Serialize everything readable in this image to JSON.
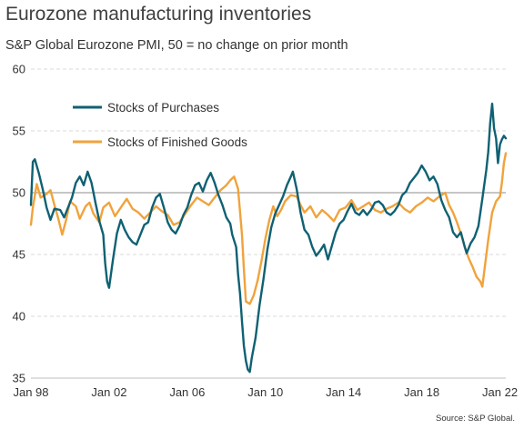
{
  "title": "Eurozone manufacturing inventories",
  "subtitle": "S&P Global Eurozone PMI, 50 = no change on prior month",
  "source": "Source: S&P Global.",
  "chart_data": {
    "type": "line",
    "ylim": [
      35,
      60
    ],
    "yticks": [
      "35",
      "40",
      "45",
      "50",
      "55",
      "60"
    ],
    "xlim": [
      1998.0,
      2022.3
    ],
    "xticks": [
      {
        "label": "Jan 98",
        "value": 1998
      },
      {
        "label": "Jan 02",
        "value": 2002
      },
      {
        "label": "Jan 06",
        "value": 2006
      },
      {
        "label": "Jan 10",
        "value": 2010
      },
      {
        "label": "Jan 14",
        "value": 2014
      },
      {
        "label": "Jan 18",
        "value": 2018
      },
      {
        "label": "Jan 22",
        "value": 2022
      }
    ],
    "grid": "horizontal-dashed",
    "reference_line": 50,
    "legend_position": "top-left",
    "series": [
      {
        "name": "Stocks of Purchases",
        "color": "#0f6173",
        "points": [
          [
            1998.0,
            49.0
          ],
          [
            1998.1,
            52.5
          ],
          [
            1998.2,
            52.7
          ],
          [
            1998.4,
            51.6
          ],
          [
            1998.6,
            50.3
          ],
          [
            1998.8,
            48.8
          ],
          [
            1999.0,
            47.8
          ],
          [
            1999.2,
            48.7
          ],
          [
            1999.5,
            48.6
          ],
          [
            1999.7,
            48.0
          ],
          [
            1999.9,
            48.8
          ],
          [
            2000.1,
            49.6
          ],
          [
            2000.3,
            50.8
          ],
          [
            2000.5,
            51.3
          ],
          [
            2000.7,
            50.6
          ],
          [
            2000.9,
            51.7
          ],
          [
            2001.1,
            50.8
          ],
          [
            2001.3,
            49.2
          ],
          [
            2001.5,
            47.7
          ],
          [
            2001.7,
            46.6
          ],
          [
            2001.8,
            44.3
          ],
          [
            2001.9,
            42.8
          ],
          [
            2002.0,
            42.3
          ],
          [
            2002.2,
            44.6
          ],
          [
            2002.4,
            46.7
          ],
          [
            2002.6,
            47.8
          ],
          [
            2002.8,
            47.0
          ],
          [
            2003.0,
            46.4
          ],
          [
            2003.2,
            46.0
          ],
          [
            2003.4,
            45.8
          ],
          [
            2003.6,
            46.6
          ],
          [
            2003.8,
            47.4
          ],
          [
            2004.0,
            47.6
          ],
          [
            2004.2,
            48.8
          ],
          [
            2004.4,
            49.6
          ],
          [
            2004.6,
            49.9
          ],
          [
            2004.8,
            48.8
          ],
          [
            2005.0,
            47.6
          ],
          [
            2005.2,
            47.0
          ],
          [
            2005.4,
            46.7
          ],
          [
            2005.6,
            47.3
          ],
          [
            2005.8,
            48.2
          ],
          [
            2006.0,
            48.8
          ],
          [
            2006.2,
            49.8
          ],
          [
            2006.4,
            50.6
          ],
          [
            2006.6,
            50.8
          ],
          [
            2006.8,
            50.1
          ],
          [
            2007.0,
            51.0
          ],
          [
            2007.2,
            51.6
          ],
          [
            2007.4,
            50.8
          ],
          [
            2007.6,
            49.8
          ],
          [
            2007.8,
            49.0
          ],
          [
            2008.0,
            48.0
          ],
          [
            2008.2,
            47.5
          ],
          [
            2008.3,
            46.6
          ],
          [
            2008.5,
            45.6
          ],
          [
            2008.6,
            43.4
          ],
          [
            2008.7,
            41.8
          ],
          [
            2008.8,
            39.6
          ],
          [
            2008.9,
            37.6
          ],
          [
            2009.0,
            36.4
          ],
          [
            2009.1,
            35.7
          ],
          [
            2009.2,
            35.5
          ],
          [
            2009.3,
            36.6
          ],
          [
            2009.5,
            38.3
          ],
          [
            2009.7,
            40.9
          ],
          [
            2009.9,
            43.0
          ],
          [
            2010.1,
            45.4
          ],
          [
            2010.3,
            47.2
          ],
          [
            2010.5,
            48.3
          ],
          [
            2010.7,
            49.0
          ],
          [
            2010.9,
            49.7
          ],
          [
            2011.1,
            50.6
          ],
          [
            2011.3,
            51.3
          ],
          [
            2011.4,
            51.7
          ],
          [
            2011.6,
            50.3
          ],
          [
            2011.8,
            48.4
          ],
          [
            2012.0,
            47.0
          ],
          [
            2012.2,
            46.6
          ],
          [
            2012.4,
            45.6
          ],
          [
            2012.6,
            44.9
          ],
          [
            2012.8,
            45.3
          ],
          [
            2013.0,
            45.8
          ],
          [
            2013.2,
            44.6
          ],
          [
            2013.4,
            45.7
          ],
          [
            2013.6,
            46.8
          ],
          [
            2013.8,
            47.5
          ],
          [
            2014.0,
            47.8
          ],
          [
            2014.2,
            48.5
          ],
          [
            2014.4,
            49.1
          ],
          [
            2014.6,
            48.4
          ],
          [
            2014.8,
            48.2
          ],
          [
            2015.0,
            48.6
          ],
          [
            2015.2,
            48.2
          ],
          [
            2015.4,
            48.6
          ],
          [
            2015.6,
            49.2
          ],
          [
            2015.8,
            49.3
          ],
          [
            2016.0,
            49.0
          ],
          [
            2016.2,
            48.4
          ],
          [
            2016.4,
            48.2
          ],
          [
            2016.6,
            48.5
          ],
          [
            2016.8,
            49.0
          ],
          [
            2017.0,
            49.8
          ],
          [
            2017.2,
            50.1
          ],
          [
            2017.4,
            50.8
          ],
          [
            2017.6,
            51.2
          ],
          [
            2017.8,
            51.6
          ],
          [
            2018.0,
            52.2
          ],
          [
            2018.2,
            51.7
          ],
          [
            2018.4,
            51.0
          ],
          [
            2018.6,
            51.3
          ],
          [
            2018.8,
            50.7
          ],
          [
            2019.0,
            49.4
          ],
          [
            2019.2,
            48.6
          ],
          [
            2019.4,
            48.0
          ],
          [
            2019.6,
            46.8
          ],
          [
            2019.8,
            46.4
          ],
          [
            2020.0,
            46.8
          ],
          [
            2020.2,
            45.6
          ],
          [
            2020.3,
            45.1
          ],
          [
            2020.5,
            45.9
          ],
          [
            2020.7,
            46.4
          ],
          [
            2020.9,
            47.3
          ],
          [
            2021.1,
            49.5
          ],
          [
            2021.3,
            51.8
          ],
          [
            2021.4,
            53.3
          ],
          [
            2021.5,
            55.6
          ],
          [
            2021.6,
            57.2
          ],
          [
            2021.7,
            55.2
          ],
          [
            2021.8,
            54.4
          ],
          [
            2021.9,
            52.4
          ],
          [
            2022.0,
            53.9
          ],
          [
            2022.1,
            54.3
          ],
          [
            2022.2,
            54.6
          ],
          [
            2022.3,
            54.4
          ]
        ]
      },
      {
        "name": "Stocks of Finished Goods",
        "color": "#f0a33c",
        "points": [
          [
            1998.0,
            47.4
          ],
          [
            1998.1,
            48.8
          ],
          [
            1998.3,
            50.7
          ],
          [
            1998.5,
            49.6
          ],
          [
            1998.8,
            49.9
          ],
          [
            1999.0,
            50.2
          ],
          [
            1999.2,
            49.0
          ],
          [
            1999.4,
            47.9
          ],
          [
            1999.6,
            46.6
          ],
          [
            1999.8,
            47.8
          ],
          [
            2000.0,
            49.3
          ],
          [
            2000.3,
            48.9
          ],
          [
            2000.5,
            47.9
          ],
          [
            2000.8,
            48.9
          ],
          [
            2001.0,
            49.2
          ],
          [
            2001.2,
            48.3
          ],
          [
            2001.5,
            47.6
          ],
          [
            2001.7,
            48.8
          ],
          [
            2002.0,
            49.2
          ],
          [
            2002.3,
            48.1
          ],
          [
            2002.6,
            48.8
          ],
          [
            2002.9,
            49.5
          ],
          [
            2003.2,
            48.7
          ],
          [
            2003.5,
            48.4
          ],
          [
            2003.8,
            47.9
          ],
          [
            2004.1,
            48.4
          ],
          [
            2004.4,
            48.9
          ],
          [
            2004.7,
            48.5
          ],
          [
            2005.0,
            48.2
          ],
          [
            2005.3,
            47.4
          ],
          [
            2005.6,
            47.6
          ],
          [
            2005.9,
            48.3
          ],
          [
            2006.2,
            49.0
          ],
          [
            2006.5,
            49.6
          ],
          [
            2006.8,
            49.3
          ],
          [
            2007.1,
            49.0
          ],
          [
            2007.4,
            49.6
          ],
          [
            2007.7,
            50.2
          ],
          [
            2008.0,
            50.6
          ],
          [
            2008.2,
            51.0
          ],
          [
            2008.4,
            51.3
          ],
          [
            2008.6,
            50.3
          ],
          [
            2008.8,
            46.6
          ],
          [
            2008.9,
            43.8
          ],
          [
            2009.0,
            41.2
          ],
          [
            2009.2,
            41.0
          ],
          [
            2009.4,
            41.7
          ],
          [
            2009.6,
            42.9
          ],
          [
            2009.8,
            44.5
          ],
          [
            2010.0,
            46.3
          ],
          [
            2010.2,
            47.8
          ],
          [
            2010.4,
            48.9
          ],
          [
            2010.6,
            48.1
          ],
          [
            2010.8,
            48.6
          ],
          [
            2011.0,
            49.3
          ],
          [
            2011.3,
            49.8
          ],
          [
            2011.6,
            49.7
          ],
          [
            2011.8,
            49.0
          ],
          [
            2012.0,
            48.4
          ],
          [
            2012.3,
            48.9
          ],
          [
            2012.6,
            48.0
          ],
          [
            2012.9,
            48.6
          ],
          [
            2013.2,
            48.2
          ],
          [
            2013.5,
            47.7
          ],
          [
            2013.8,
            48.6
          ],
          [
            2014.1,
            48.8
          ],
          [
            2014.4,
            49.4
          ],
          [
            2014.7,
            48.6
          ],
          [
            2015.0,
            48.9
          ],
          [
            2015.3,
            49.2
          ],
          [
            2015.6,
            48.6
          ],
          [
            2015.9,
            48.4
          ],
          [
            2016.2,
            48.7
          ],
          [
            2016.5,
            48.9
          ],
          [
            2016.8,
            49.2
          ],
          [
            2017.1,
            48.7
          ],
          [
            2017.4,
            48.4
          ],
          [
            2017.7,
            48.9
          ],
          [
            2018.0,
            49.2
          ],
          [
            2018.3,
            49.6
          ],
          [
            2018.6,
            49.3
          ],
          [
            2018.9,
            49.7
          ],
          [
            2019.2,
            50.0
          ],
          [
            2019.4,
            49.0
          ],
          [
            2019.6,
            48.4
          ],
          [
            2019.8,
            47.6
          ],
          [
            2020.0,
            46.7
          ],
          [
            2020.2,
            45.6
          ],
          [
            2020.4,
            44.7
          ],
          [
            2020.6,
            44.0
          ],
          [
            2020.8,
            43.2
          ],
          [
            2021.0,
            42.8
          ],
          [
            2021.1,
            42.4
          ],
          [
            2021.2,
            43.7
          ],
          [
            2021.4,
            46.2
          ],
          [
            2021.6,
            48.4
          ],
          [
            2021.8,
            49.3
          ],
          [
            2022.0,
            49.7
          ],
          [
            2022.1,
            50.8
          ],
          [
            2022.2,
            52.4
          ],
          [
            2022.3,
            53.2
          ]
        ]
      }
    ]
  }
}
